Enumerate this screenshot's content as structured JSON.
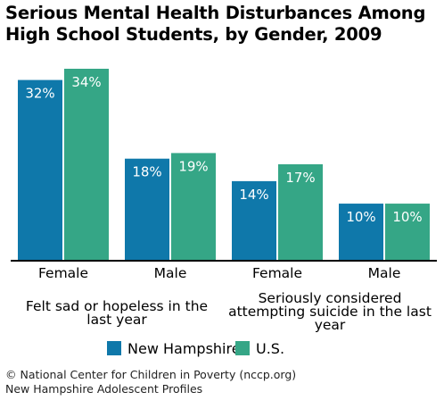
{
  "title": "Serious Mental Health Disturbances Among High School Students, by Gender, 2009",
  "colors": {
    "new_hampshire": "#0f78aa",
    "us": "#35a686",
    "axis": "#000000"
  },
  "chart_data": {
    "type": "bar",
    "categories": [
      "Female",
      "Male",
      "Female",
      "Male"
    ],
    "groups": [
      {
        "label_lines": [
          "Felt sad or hopeless in the",
          "last year"
        ],
        "categories": [
          0,
          1
        ]
      },
      {
        "label_lines": [
          "Seriously considered",
          "attempting suicide in the last",
          "year"
        ],
        "categories": [
          2,
          3
        ]
      }
    ],
    "series": [
      {
        "name": "New Hampshire",
        "values": [
          32,
          18,
          14,
          10
        ],
        "labels": [
          "32%",
          "18%",
          "14%",
          "10%"
        ]
      },
      {
        "name": "U.S.",
        "values": [
          34,
          19,
          17,
          10
        ],
        "labels": [
          "34%",
          "19%",
          "17%",
          "10%"
        ]
      }
    ],
    "ylim": [
      0,
      34
    ],
    "grid": false,
    "legend": "bottom"
  },
  "footer": {
    "line1": "© National Center for Children in Poverty (nccp.org)",
    "line2": "New Hampshire Adolescent Profiles"
  }
}
